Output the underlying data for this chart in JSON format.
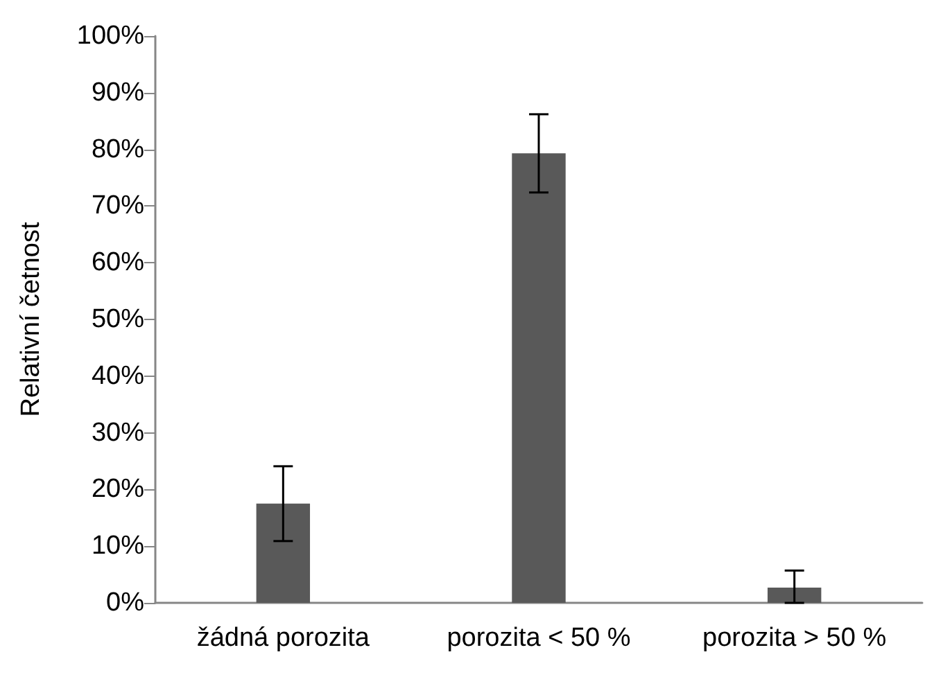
{
  "chart_data": {
    "type": "bar",
    "ylabel": "Relativní četnost",
    "categories": [
      "žádná porozita",
      "porozita < 50 %",
      "porozita > 50 %"
    ],
    "values": [
      17.5,
      79.3,
      2.7
    ],
    "errors": [
      6.6,
      6.9,
      [
        0,
        5.7
      ]
    ],
    "color": "#595959",
    "ylim": [
      0,
      100
    ],
    "yticks": [
      {
        "value": 0,
        "label": "0%"
      },
      {
        "value": 10,
        "label": "10%"
      },
      {
        "value": 20,
        "label": "20%"
      },
      {
        "value": 30,
        "label": "30%"
      },
      {
        "value": 40,
        "label": "40%"
      },
      {
        "value": 50,
        "label": "50%"
      },
      {
        "value": 60,
        "label": "60%"
      },
      {
        "value": 70,
        "label": "70%"
      },
      {
        "value": 80,
        "label": "80%"
      },
      {
        "value": 90,
        "label": "90%"
      },
      {
        "value": 100,
        "label": "100%"
      }
    ],
    "grid": false
  }
}
